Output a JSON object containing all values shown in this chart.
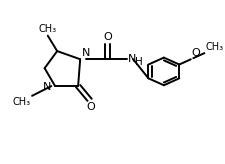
{
  "bg_color": "#ffffff",
  "line_color": "#000000",
  "line_width": 1.4,
  "font_size": 7.5,
  "fig_width": 2.25,
  "fig_height": 1.64,
  "dpi": 100,
  "xlim": [
    0,
    10
  ],
  "ylim": [
    0,
    10
  ]
}
